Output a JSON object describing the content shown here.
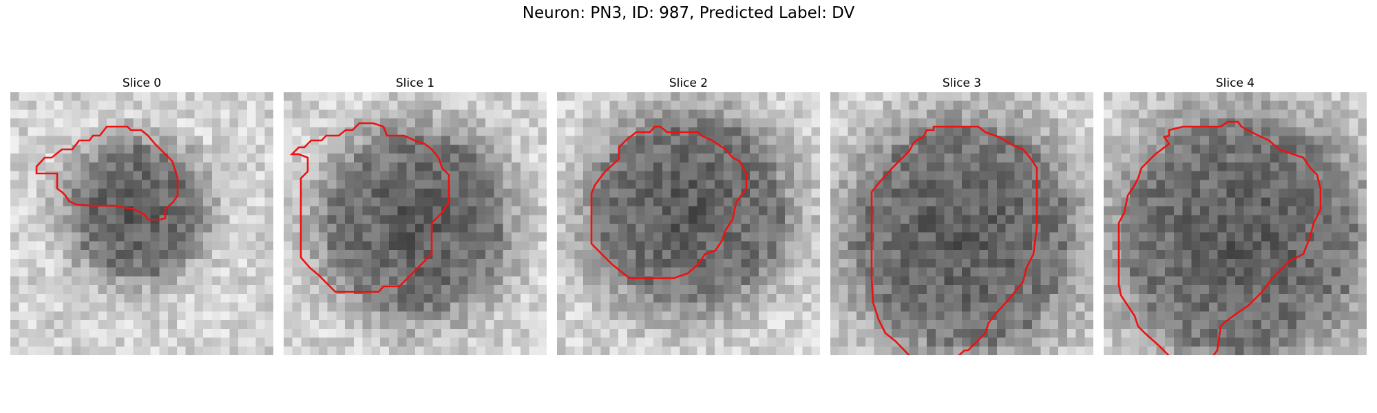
{
  "figure": {
    "title": "Neuron: PN3, ID: 987, Predicted Label: DV"
  },
  "slices": [
    {
      "title": "Slice 0"
    },
    {
      "title": "Slice 1"
    },
    {
      "title": "Slice 2"
    },
    {
      "title": "Slice 3"
    },
    {
      "title": "Slice 4"
    }
  ],
  "colors": {
    "contour": "#ee1111",
    "colormap": "grayscale"
  }
}
